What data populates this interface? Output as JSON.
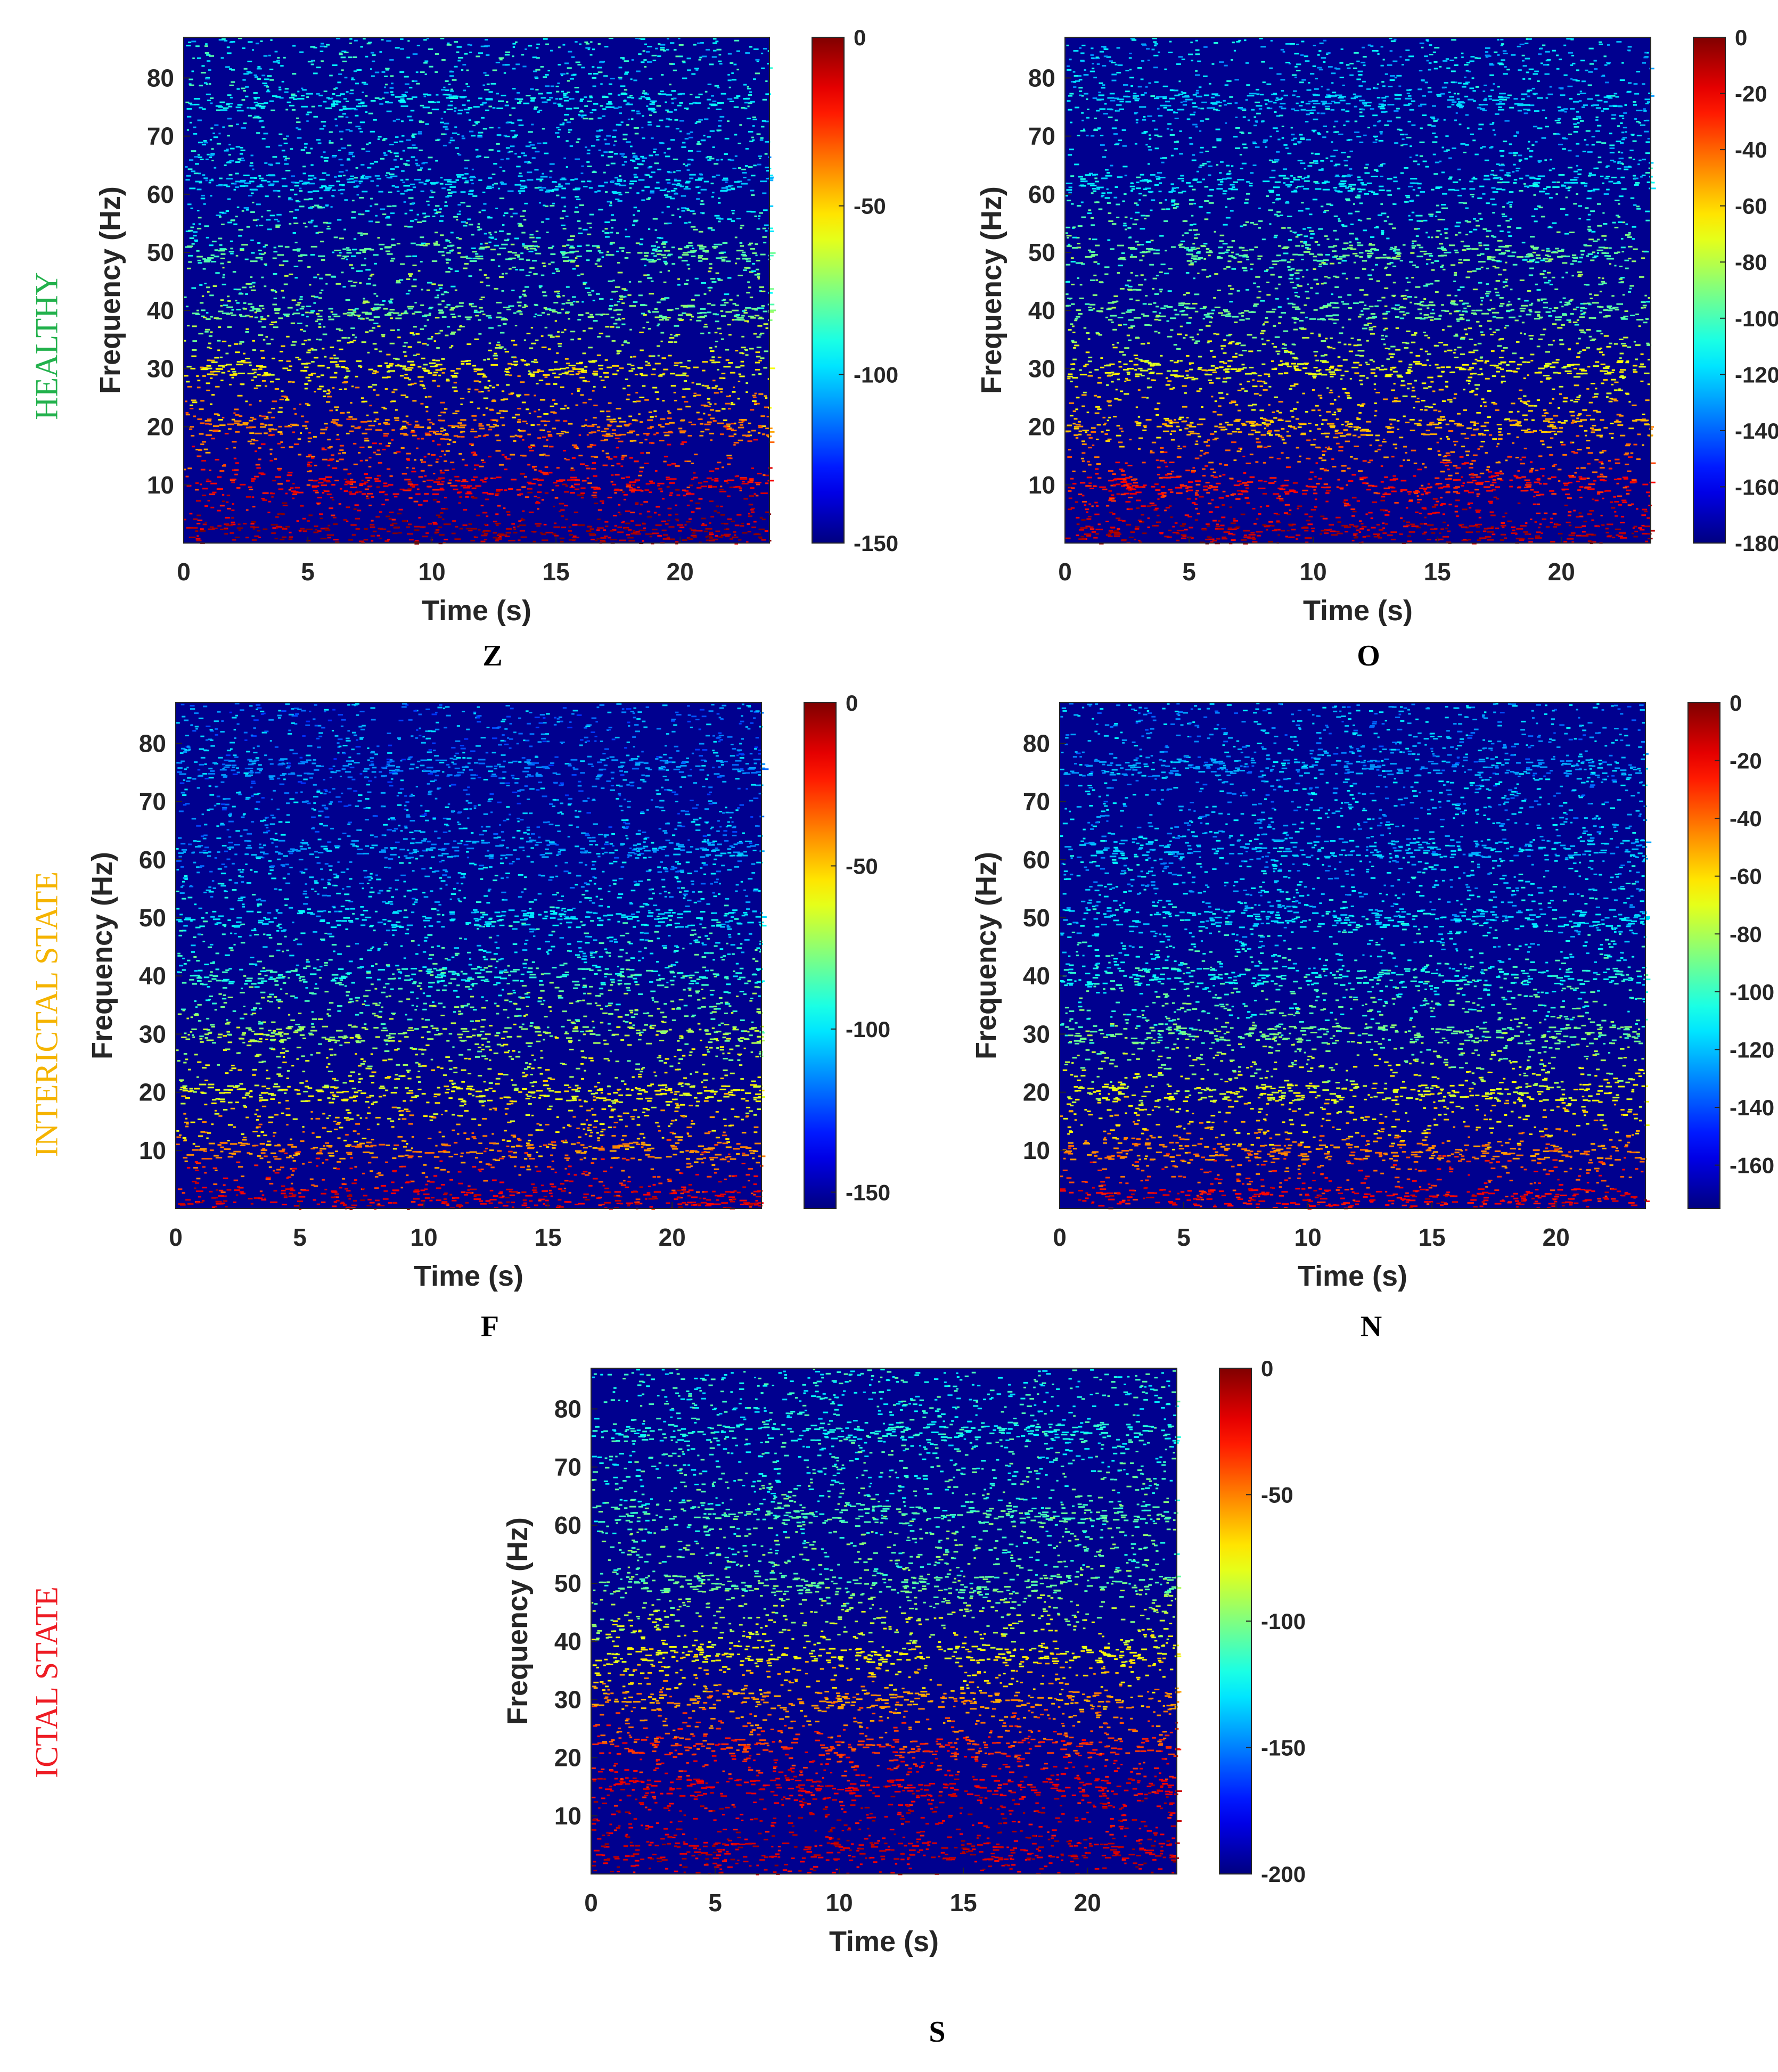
{
  "row_labels": [
    {
      "text": "HEALTHY",
      "color": "#22b14c"
    },
    {
      "text": "INTERICTAL STATE",
      "color": "#f5b400"
    },
    {
      "text": "ICTAL STATE",
      "color": "#ee1c24"
    }
  ],
  "chart_data": [
    {
      "type": "heatmap",
      "caption": "Z",
      "xlabel": "Time (s)",
      "ylabel": "Frequency (Hz)",
      "xlim": [
        0,
        23.6
      ],
      "ylim": [
        0,
        87
      ],
      "xticks": [
        0,
        5,
        10,
        15,
        20
      ],
      "yticks": [
        10,
        20,
        30,
        40,
        50,
        60,
        70,
        80
      ],
      "colorbar": {
        "colormap": "jet",
        "range": [
          -150,
          0
        ],
        "ticks": [
          0,
          -50,
          -100,
          -150
        ]
      },
      "bands": [
        {
          "freq": 2,
          "value": -5
        },
        {
          "freq": 10,
          "value": -18
        },
        {
          "freq": 20,
          "value": -38
        },
        {
          "freq": 30,
          "value": -55
        },
        {
          "freq": 40,
          "value": -78
        },
        {
          "freq": 50,
          "value": -80
        },
        {
          "freq": 62,
          "value": -100
        },
        {
          "freq": 76,
          "value": -95
        }
      ]
    },
    {
      "type": "heatmap",
      "caption": "O",
      "xlabel": "Time (s)",
      "ylabel": "Frequency (Hz)",
      "xlim": [
        0,
        23.6
      ],
      "ylim": [
        0,
        87
      ],
      "xticks": [
        0,
        5,
        10,
        15,
        20
      ],
      "yticks": [
        10,
        20,
        30,
        40,
        50,
        60,
        70,
        80
      ],
      "colorbar": {
        "colormap": "jet",
        "range": [
          -180,
          0
        ],
        "ticks": [
          0,
          -20,
          -40,
          -60,
          -80,
          -100,
          -120,
          -140,
          -160,
          -180
        ]
      },
      "bands": [
        {
          "freq": 2,
          "value": -10
        },
        {
          "freq": 10,
          "value": -25
        },
        {
          "freq": 20,
          "value": -55
        },
        {
          "freq": 30,
          "value": -70
        },
        {
          "freq": 40,
          "value": -95
        },
        {
          "freq": 50,
          "value": -95
        },
        {
          "freq": 62,
          "value": -115
        },
        {
          "freq": 76,
          "value": -120
        }
      ]
    },
    {
      "type": "heatmap",
      "caption": "F",
      "xlabel": "Time (s)",
      "ylabel": "Frequency (Hz)",
      "xlim": [
        0,
        23.6
      ],
      "ylim": [
        0,
        87
      ],
      "xticks": [
        0,
        5,
        10,
        15,
        20
      ],
      "yticks": [
        10,
        20,
        30,
        40,
        50,
        60,
        70,
        80
      ],
      "colorbar": {
        "colormap": "jet",
        "range": [
          -155,
          0
        ],
        "ticks": [
          0,
          -50,
          -100,
          -150
        ]
      },
      "bands": [
        {
          "freq": 2,
          "value": -15
        },
        {
          "freq": 10,
          "value": -40
        },
        {
          "freq": 20,
          "value": -60
        },
        {
          "freq": 30,
          "value": -72
        },
        {
          "freq": 40,
          "value": -90
        },
        {
          "freq": 50,
          "value": -100
        },
        {
          "freq": 62,
          "value": -110
        },
        {
          "freq": 76,
          "value": -115
        }
      ]
    },
    {
      "type": "heatmap",
      "caption": "N",
      "xlabel": "Time (s)",
      "ylabel": "Frequency (Hz)",
      "xlim": [
        0,
        23.6
      ],
      "ylim": [
        0,
        87
      ],
      "xticks": [
        0,
        5,
        10,
        15,
        20
      ],
      "yticks": [
        10,
        20,
        30,
        40,
        50,
        60,
        70,
        80
      ],
      "colorbar": {
        "colormap": "jet",
        "range": [
          -175,
          0
        ],
        "ticks": [
          0,
          -20,
          -40,
          -60,
          -80,
          -100,
          -120,
          -140,
          -160
        ]
      },
      "bands": [
        {
          "freq": 2,
          "value": -20
        },
        {
          "freq": 10,
          "value": -45
        },
        {
          "freq": 20,
          "value": -70
        },
        {
          "freq": 30,
          "value": -90
        },
        {
          "freq": 40,
          "value": -105
        },
        {
          "freq": 50,
          "value": -115
        },
        {
          "freq": 62,
          "value": -120
        },
        {
          "freq": 76,
          "value": -125
        }
      ]
    },
    {
      "type": "heatmap",
      "caption": "S",
      "xlabel": "Time (s)",
      "ylabel": "Frequency (Hz)",
      "xlim": [
        0,
        23.6
      ],
      "ylim": [
        0,
        87
      ],
      "xticks": [
        0,
        5,
        10,
        15,
        20
      ],
      "yticks": [
        10,
        20,
        30,
        40,
        50,
        60,
        70,
        80
      ],
      "colorbar": {
        "colormap": "jet",
        "range": [
          -200,
          0
        ],
        "ticks": [
          0,
          -50,
          -100,
          -150,
          -200
        ]
      },
      "bands": [
        {
          "freq": 4,
          "value": -15
        },
        {
          "freq": 15,
          "value": -20
        },
        {
          "freq": 22,
          "value": -35
        },
        {
          "freq": 30,
          "value": -55
        },
        {
          "freq": 38,
          "value": -75
        },
        {
          "freq": 50,
          "value": -105
        },
        {
          "freq": 62,
          "value": -110
        },
        {
          "freq": 76,
          "value": -120
        }
      ]
    }
  ]
}
